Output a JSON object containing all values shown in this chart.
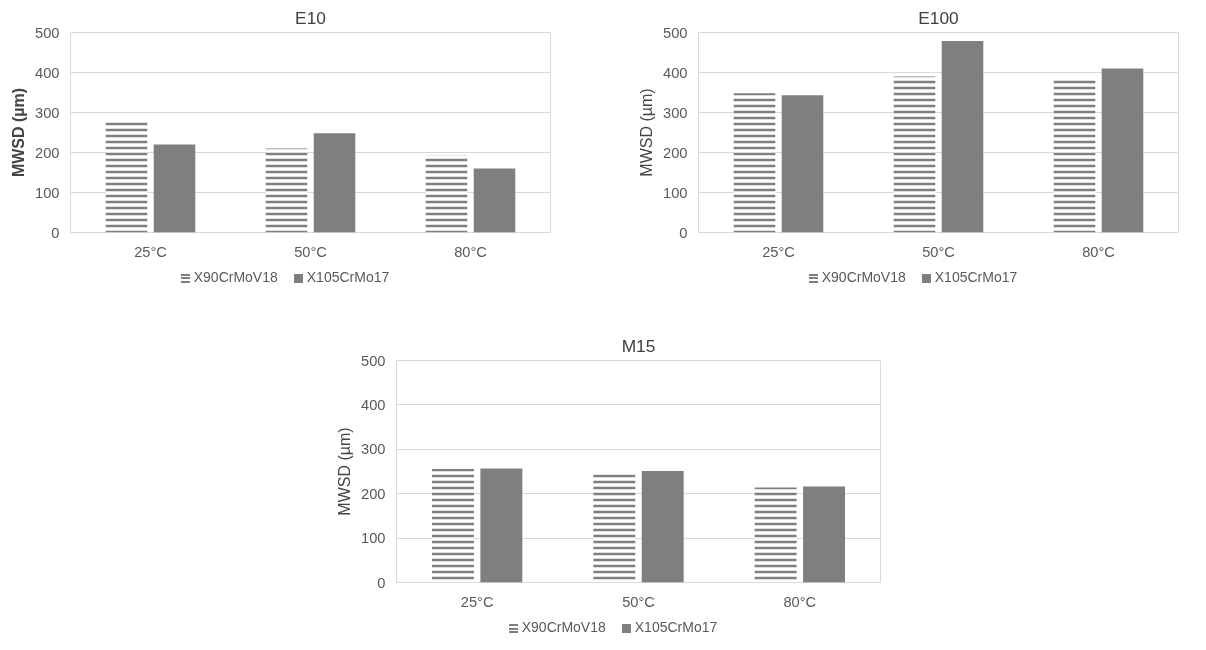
{
  "chart_data": [
    {
      "type": "bar",
      "title": "E10",
      "ylabel": "MWSD (µm)",
      "categories": [
        "25°C",
        "50°C",
        "80°C"
      ],
      "ylim": [
        0,
        500
      ],
      "yticks": [
        0,
        100,
        200,
        300,
        400,
        500
      ],
      "grid": "y",
      "legend": "bottom",
      "series": [
        {
          "name": "X90CrMoV18",
          "color": "#7f7f7f",
          "values": [
            281,
            210,
            193
          ]
        },
        {
          "name": "X105CrMo17",
          "color": "#7f7f7f",
          "values": [
            220,
            248,
            160
          ]
        }
      ]
    },
    {
      "type": "bar",
      "title": "E100",
      "ylabel": "MWSD (µm)",
      "categories": [
        "25°C",
        "50°C",
        "80°C"
      ],
      "ylim": [
        0,
        500
      ],
      "yticks": [
        0,
        100,
        200,
        300,
        400,
        500
      ],
      "grid": "y",
      "legend": "bottom",
      "series": [
        {
          "name": "X90CrMoV18",
          "color": "#7f7f7f",
          "values": [
            348,
            390,
            383
          ]
        },
        {
          "name": "X105CrMo17",
          "color": "#7f7f7f",
          "values": [
            343,
            479,
            410
          ]
        }
      ]
    },
    {
      "type": "bar",
      "title": "M15",
      "ylabel": "MWSD (µm)",
      "categories": [
        "25°C",
        "50°C",
        "80°C"
      ],
      "ylim": [
        0,
        500
      ],
      "yticks": [
        0,
        100,
        200,
        300,
        400,
        500
      ],
      "grid": "y",
      "legend": "bottom",
      "series": [
        {
          "name": "X90CrMoV18",
          "color": "#7f7f7f",
          "values": [
            256,
            244,
            214
          ]
        },
        {
          "name": "X105CrMo17",
          "color": "#7f7f7f",
          "values": [
            257,
            251,
            216
          ]
        }
      ]
    }
  ]
}
